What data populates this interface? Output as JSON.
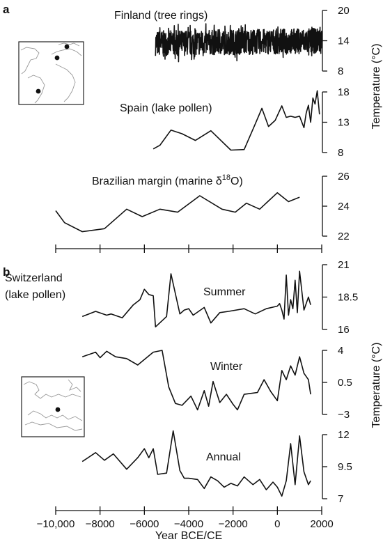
{
  "panels": {
    "a": "a",
    "b": "b"
  },
  "x_axis": {
    "title": "Year BCE/CE",
    "ticks": [
      "−10,000",
      "−8000",
      "−6000",
      "−4000",
      "−2000",
      "0",
      "2000"
    ]
  },
  "y_axis_titles": {
    "a": "Temperature (°C)",
    "b": "Temperature (°C)"
  },
  "chart_data": [
    {
      "panel": "a",
      "type": "line",
      "title": "Finland (tree rings)",
      "ylim": [
        8,
        20
      ],
      "yticks": [
        "20",
        "14",
        "8"
      ],
      "x_range": [
        -5500,
        2000
      ],
      "y_band": [
        11.5,
        16.5
      ],
      "series": [
        {
          "x": [
            -5500,
            2000
          ],
          "y": [
            13.5,
            14
          ]
        }
      ]
    },
    {
      "panel": "a",
      "type": "line",
      "title": "Spain (lake pollen)",
      "ylim": [
        8,
        18
      ],
      "yticks": [
        "18",
        "13",
        "8"
      ],
      "series": [
        {
          "x": [
            -5600,
            -5300,
            -4800,
            -4300,
            -3700,
            -3000,
            -2100,
            -1500,
            -1000,
            -700,
            -400,
            -100,
            200,
            400,
            600,
            800,
            1000,
            1200,
            1300,
            1400,
            1500,
            1600,
            1700,
            1800,
            1900
          ],
          "y": [
            8.6,
            9.2,
            11.7,
            11.1,
            10.0,
            11.6,
            8.4,
            8.5,
            12.7,
            15.3,
            12.3,
            13.3,
            15.7,
            13.8,
            14.0,
            13.8,
            14.0,
            12.1,
            14.5,
            15.8,
            13.0,
            17.0,
            16.0,
            18.2,
            14.3
          ]
        }
      ]
    },
    {
      "panel": "a",
      "type": "line",
      "title": "Brazilian margin (marine δ18O)",
      "ylim": [
        22,
        26
      ],
      "yticks": [
        "26",
        "24",
        "22"
      ],
      "series": [
        {
          "x": [
            -10000,
            -9600,
            -8800,
            -7800,
            -6800,
            -6100,
            -5300,
            -4500,
            -3500,
            -2500,
            -1900,
            -1400,
            -800,
            0,
            500,
            1000
          ],
          "y": [
            23.7,
            22.9,
            22.3,
            22.5,
            23.8,
            23.3,
            23.8,
            23.6,
            24.7,
            23.8,
            23.6,
            24.2,
            23.8,
            24.9,
            24.3,
            24.6
          ]
        }
      ]
    },
    {
      "panel": "b",
      "type": "line",
      "title": "Switzerland (lake pollen)",
      "subtitle": "Summer",
      "ylim": [
        16,
        21
      ],
      "yticks": [
        "21",
        "18.5",
        "16"
      ],
      "series": [
        {
          "name": "Summer",
          "x": [
            -8800,
            -8200,
            -7700,
            -7500,
            -7000,
            -6500,
            -6200,
            -6000,
            -5800,
            -5600,
            -5500,
            -5000,
            -4800,
            -4400,
            -4200,
            -4000,
            -3800,
            -3300,
            -3000,
            -2600,
            -2200,
            -1500,
            -1000,
            -500,
            0,
            100,
            200,
            300,
            400,
            500,
            600,
            700,
            800,
            900,
            1000,
            1200,
            1400,
            1500
          ],
          "y": [
            17.0,
            17.4,
            17.1,
            17.2,
            16.9,
            17.9,
            18.3,
            19.1,
            18.7,
            18.6,
            16.2,
            17.0,
            20.3,
            17.2,
            17.5,
            17.6,
            17.1,
            17.7,
            16.5,
            17.3,
            17.4,
            17.6,
            17.2,
            17.6,
            17.8,
            18.0,
            17.5,
            16.8,
            20.2,
            17.1,
            18.3,
            17.6,
            19.8,
            17.3,
            20.5,
            17.5,
            18.5,
            17.9
          ]
        }
      ]
    },
    {
      "panel": "b",
      "type": "line",
      "title": "Winter",
      "ylim": [
        -3,
        4
      ],
      "yticks": [
        "4",
        "0.5",
        "−3"
      ],
      "series": [
        {
          "name": "Winter",
          "x": [
            -8800,
            -8200,
            -8000,
            -7700,
            -7300,
            -6800,
            -6300,
            -5600,
            -5200,
            -4900,
            -4600,
            -4300,
            -3900,
            -3600,
            -3300,
            -3100,
            -2900,
            -2600,
            -2300,
            -2000,
            -1800,
            -1500,
            -1200,
            -900,
            -600,
            -300,
            0,
            200,
            400,
            600,
            800,
            1000,
            1200,
            1400,
            1500
          ],
          "y": [
            3.3,
            3.8,
            3.2,
            3.9,
            3.3,
            3.1,
            2.4,
            3.8,
            4.0,
            0.0,
            -1.8,
            -2.0,
            -1.0,
            -2.5,
            -0.4,
            -2.1,
            0.6,
            -1.7,
            -0.8,
            -1.9,
            -2.5,
            -0.8,
            -0.7,
            -0.6,
            0.8,
            -0.5,
            -1.5,
            1.8,
            0.8,
            2.3,
            1.3,
            3.3,
            1.5,
            0.8,
            -0.8
          ]
        }
      ]
    },
    {
      "panel": "b",
      "type": "line",
      "title": "Annual",
      "ylim": [
        7,
        12
      ],
      "yticks": [
        "12",
        "9.5",
        "7"
      ],
      "series": [
        {
          "name": "Annual",
          "x": [
            -8800,
            -8200,
            -7800,
            -7400,
            -6800,
            -6300,
            -6000,
            -5800,
            -5600,
            -5400,
            -5000,
            -4700,
            -4400,
            -4200,
            -4000,
            -3600,
            -3300,
            -3000,
            -2700,
            -2400,
            -2100,
            -1800,
            -1500,
            -1100,
            -800,
            -500,
            -200,
            0,
            200,
            400,
            600,
            800,
            1000,
            1200,
            1400,
            1500
          ],
          "y": [
            9.9,
            10.6,
            10.0,
            10.5,
            9.3,
            10.2,
            10.9,
            10.2,
            10.9,
            8.9,
            9.0,
            12.3,
            9.2,
            8.6,
            8.6,
            8.5,
            7.8,
            8.7,
            8.4,
            7.9,
            8.2,
            8.0,
            8.7,
            8.1,
            8.5,
            7.7,
            8.3,
            7.9,
            7.2,
            8.4,
            11.3,
            8.1,
            11.9,
            9.1,
            8.1,
            8.4
          ]
        }
      ]
    }
  ]
}
